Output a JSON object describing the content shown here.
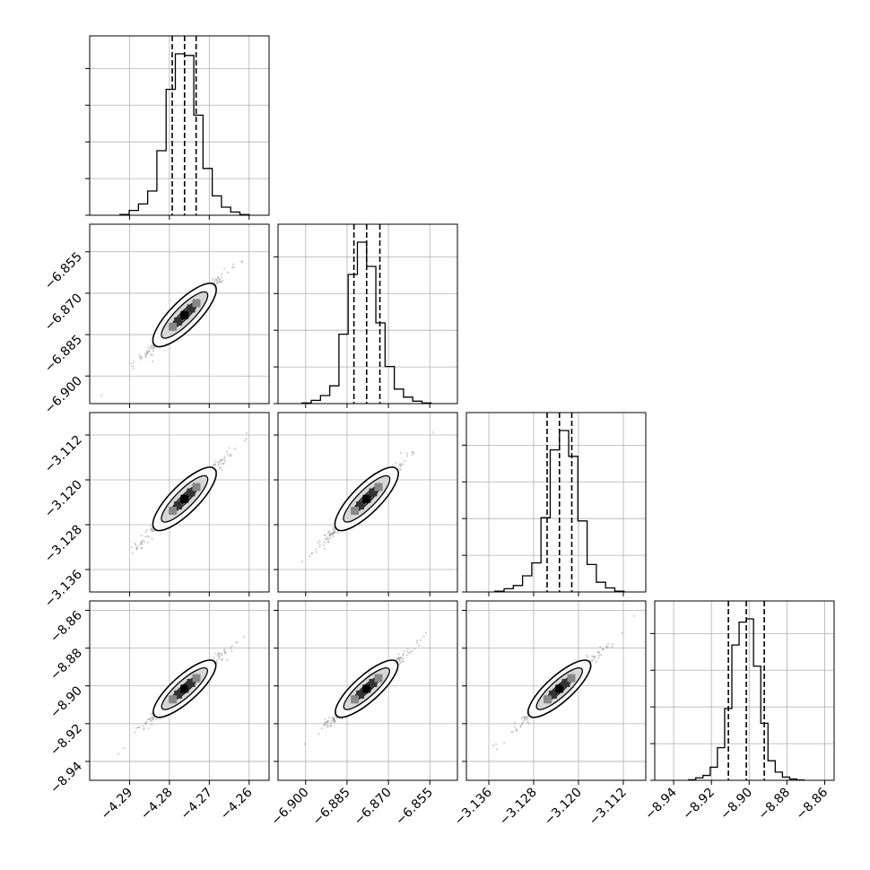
{
  "chart_data": {
    "type": "corner",
    "title": "",
    "parameters": [
      {
        "range": [
          -4.3,
          -4.255
        ],
        "ticks": [
          "-4.29",
          "-4.28",
          "-4.27",
          "-4.26"
        ],
        "tick_values": [
          -4.29,
          -4.28,
          -4.27,
          -4.26
        ]
      },
      {
        "range": [
          -6.91,
          -6.845
        ],
        "ticks": [
          "-6.900",
          "-6.885",
          "-6.870",
          "-6.855"
        ],
        "tick_values": [
          -6.9,
          -6.885,
          -6.87,
          -6.855
        ]
      },
      {
        "range": [
          -3.14,
          -3.108
        ],
        "ticks": [
          "-3.136",
          "-3.128",
          "-3.120",
          "-3.112"
        ],
        "tick_values": [
          -3.136,
          -3.128,
          -3.12,
          -3.112
        ]
      },
      {
        "range": [
          -8.95,
          -8.855
        ],
        "ticks": [
          "-8.94",
          "-8.92",
          "-8.90",
          "-8.88",
          "-8.86"
        ],
        "tick_values": [
          -8.94,
          -8.92,
          -8.9,
          -8.88,
          -8.86
        ]
      }
    ],
    "histograms": [
      {
        "counts": [
          0.005,
          0.03,
          0.07,
          0.15,
          0.4,
          0.78,
          1.0,
          0.99,
          0.62,
          0.29,
          0.12,
          0.05,
          0.02,
          0.004
        ],
        "quantiles": [
          -4.2793,
          -4.2762,
          -4.2733
        ]
      },
      {
        "counts": [
          0.004,
          0.02,
          0.05,
          0.11,
          0.43,
          0.8,
          1.0,
          0.85,
          0.5,
          0.23,
          0.09,
          0.04,
          0.015,
          0.004
        ],
        "quantiles": [
          -6.8825,
          -6.8779,
          -6.8731
        ]
      },
      {
        "counts": [
          0.005,
          0.02,
          0.04,
          0.1,
          0.18,
          0.46,
          0.88,
          1.0,
          0.84,
          0.44,
          0.17,
          0.06,
          0.025,
          0.005
        ],
        "quantiles": [
          -3.1256,
          -3.1234,
          -3.1212
        ]
      },
      {
        "counts": [
          0.003,
          0.015,
          0.03,
          0.08,
          0.2,
          0.44,
          0.83,
          0.97,
          0.99,
          0.7,
          0.35,
          0.12,
          0.05,
          0.02,
          0.008,
          0.002
        ],
        "quantiles": [
          -8.911,
          -8.9015,
          -8.892
        ]
      }
    ],
    "mean": [
      -4.2762,
      -6.8779,
      -3.1234,
      -8.9015
    ],
    "std": [
      0.0045,
      0.0065,
      0.0032,
      0.0085
    ],
    "correlation": 0.985,
    "grid": true,
    "colors": {
      "line": "#000000",
      "grid": "#b0b0b0",
      "frame": "#000000",
      "points": "#555555"
    }
  }
}
